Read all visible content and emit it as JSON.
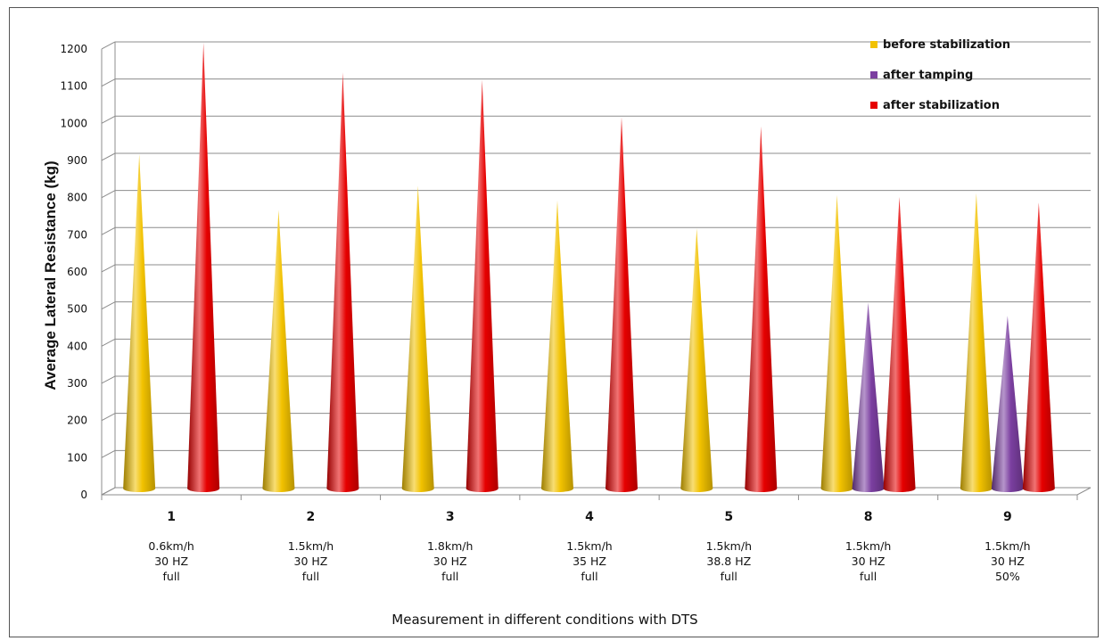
{
  "chart_data": {
    "type": "bar",
    "shape": "cone",
    "title": "",
    "ylabel": "Average  Lateral Resistance (kg)",
    "xlabel": "Measurement  in different conditions with DTS",
    "ylim": [
      0,
      1200
    ],
    "yticks": [
      0,
      100,
      200,
      300,
      400,
      500,
      600,
      700,
      800,
      900,
      1000,
      1100,
      1200
    ],
    "grid": true,
    "legend_position": "top-right",
    "categories": [
      {
        "id": "1",
        "lines": [
          "0.6km/h",
          "30 HZ",
          "full"
        ]
      },
      {
        "id": "2",
        "lines": [
          "1.5km/h",
          "30 HZ",
          "full"
        ]
      },
      {
        "id": "3",
        "lines": [
          "1.8km/h",
          "30 HZ",
          "full"
        ]
      },
      {
        "id": "4",
        "lines": [
          "1.5km/h",
          "35 HZ",
          "full"
        ]
      },
      {
        "id": "5",
        "lines": [
          "1.5km/h",
          "38.8 HZ",
          "full"
        ]
      },
      {
        "id": "8",
        "lines": [
          "1.5km/h",
          "30 HZ",
          "full"
        ]
      },
      {
        "id": "9",
        "lines": [
          "1.5km/h",
          "30 HZ",
          "50%"
        ]
      }
    ],
    "series": [
      {
        "name": "before stabilization",
        "color": "#f2c200",
        "values": [
          900,
          750,
          815,
          775,
          700,
          790,
          795
        ]
      },
      {
        "name": "after tamping",
        "color": "#7b3fa0",
        "values": [
          null,
          null,
          null,
          null,
          null,
          500,
          465
        ]
      },
      {
        "name": "after stabilization",
        "color": "#e60000",
        "values": [
          1200,
          1120,
          1100,
          1000,
          975,
          785,
          770
        ]
      }
    ]
  }
}
